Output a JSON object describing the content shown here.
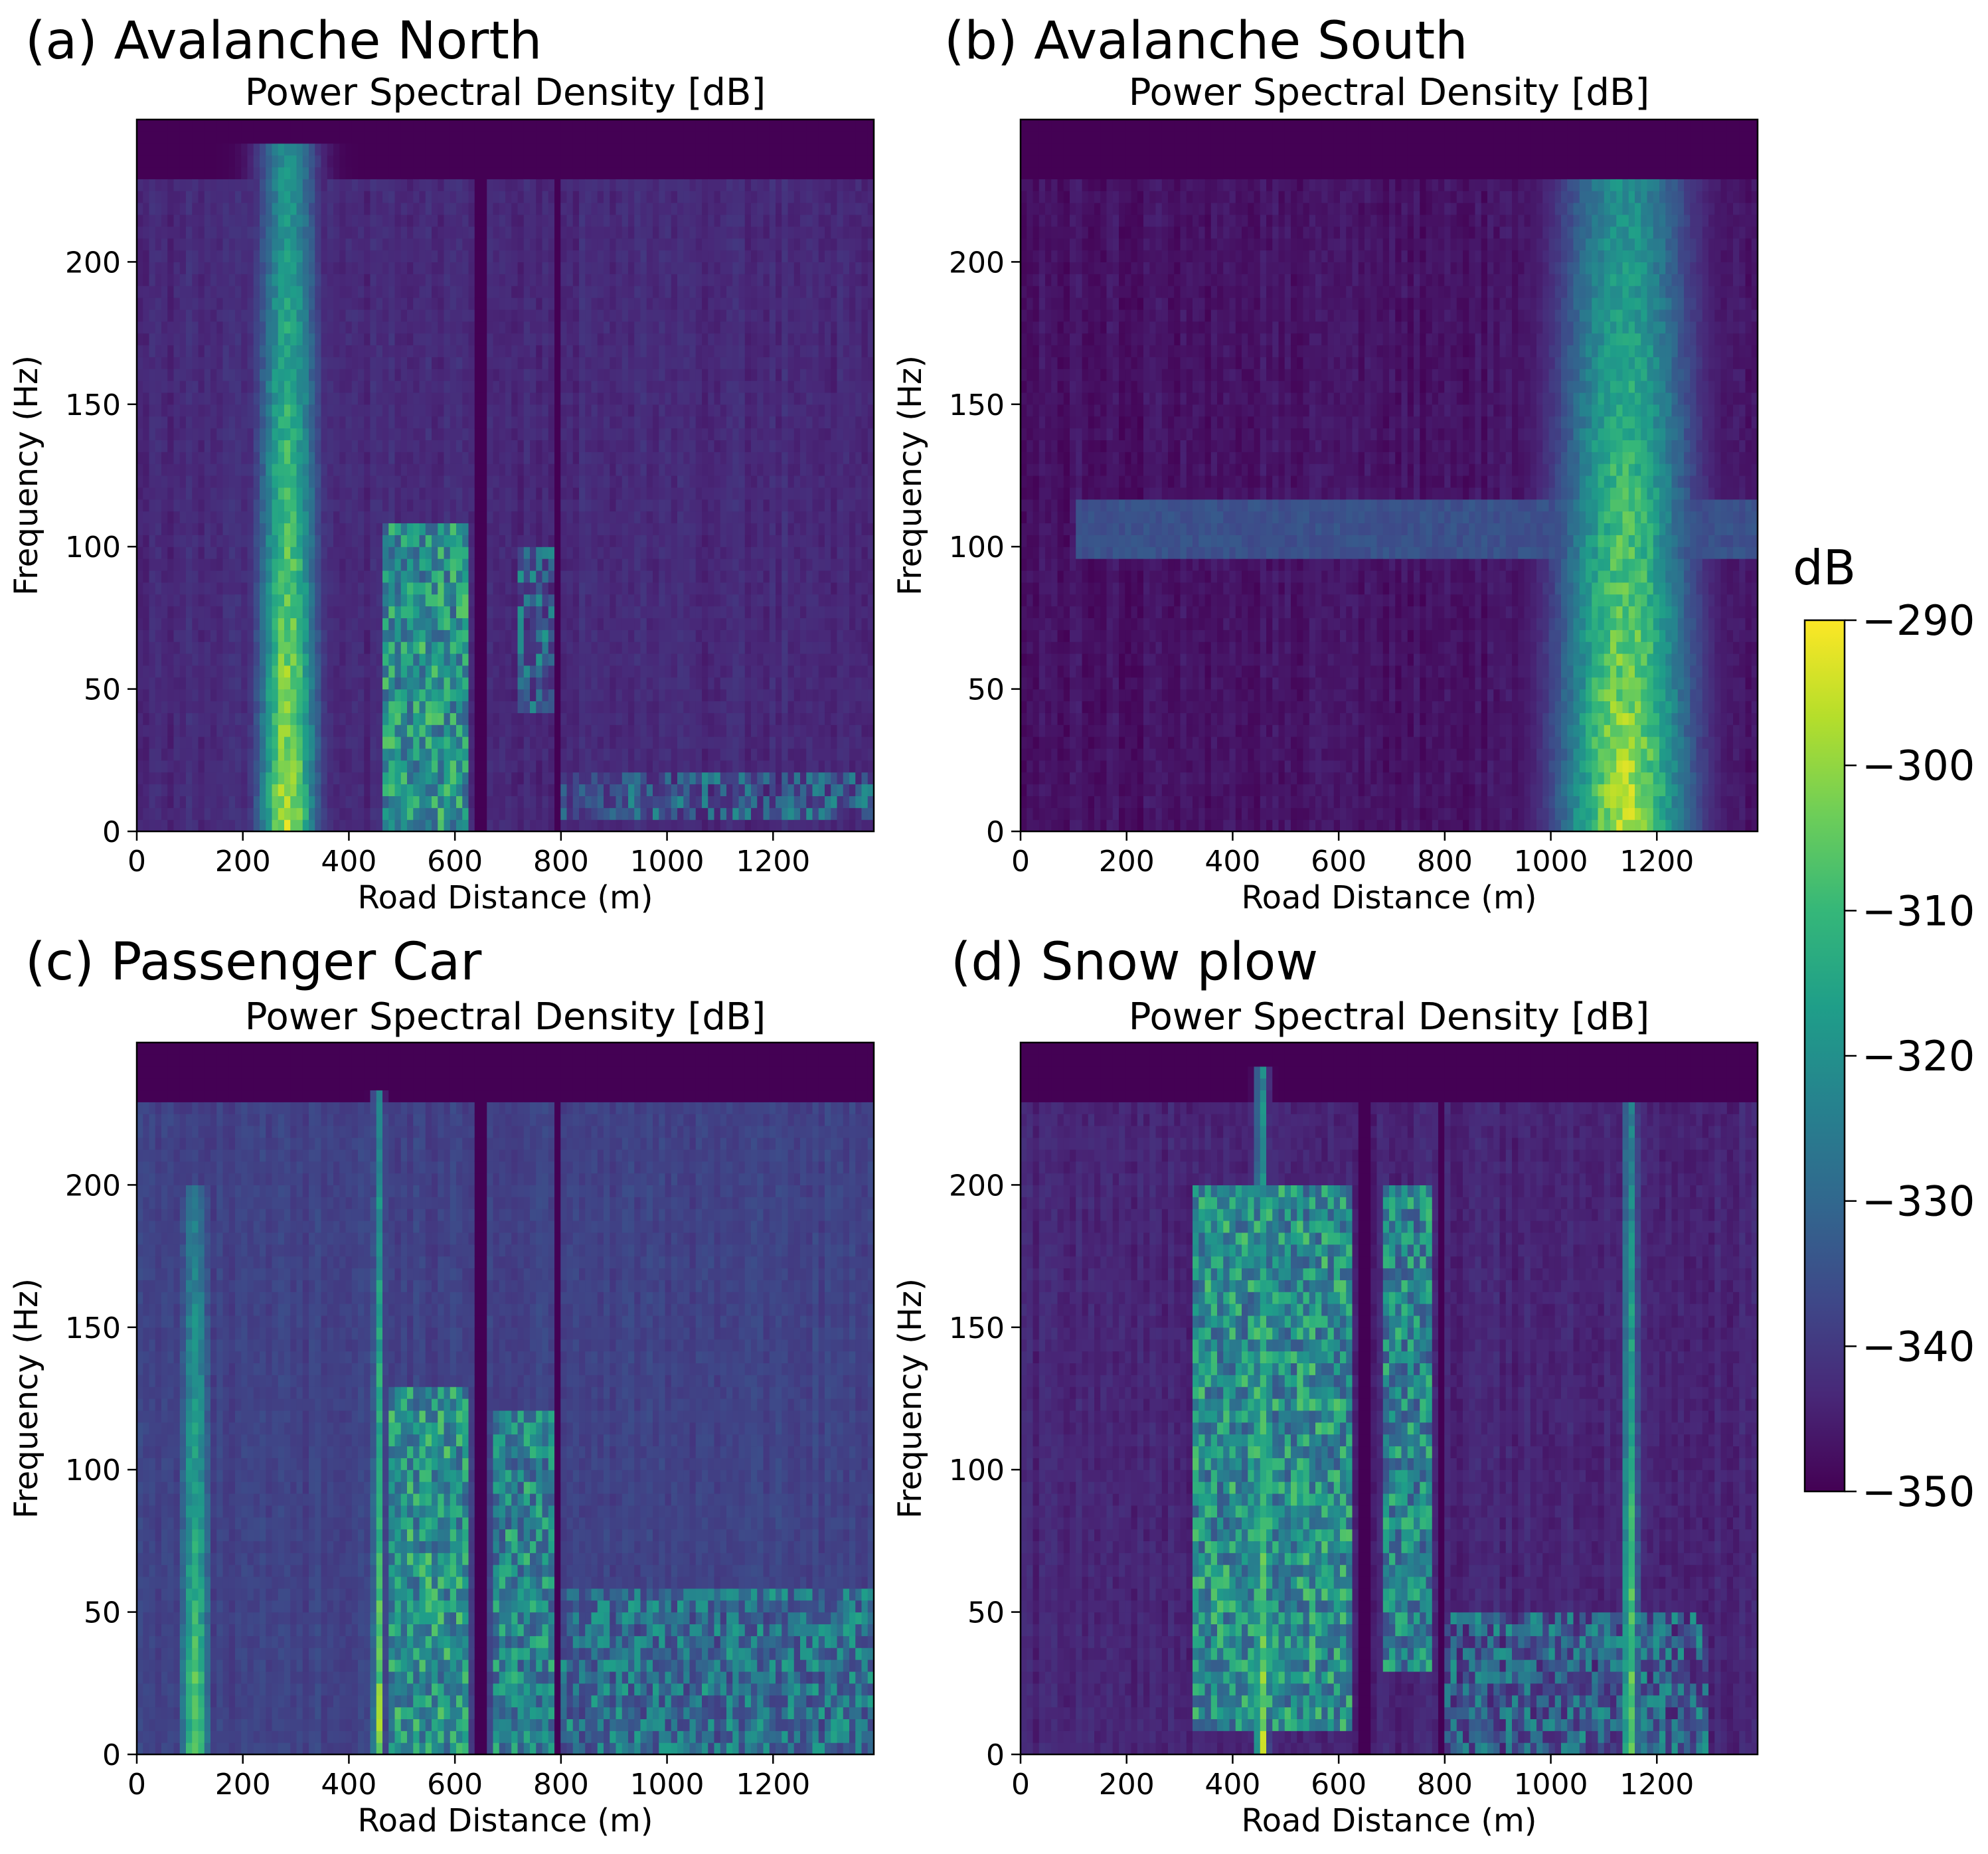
{
  "figure": {
    "colorbar": {
      "title": "dB",
      "ticks": [
        -290,
        -300,
        -310,
        -320,
        -330,
        -340,
        -350
      ],
      "tick_labels": [
        "−290",
        "−300",
        "−310",
        "−320",
        "−330",
        "−340",
        "−350"
      ],
      "range": [
        -350,
        -290
      ],
      "colormap": "viridis",
      "colormap_stops": [
        "#440154",
        "#482878",
        "#3e4989",
        "#31688e",
        "#26828e",
        "#1f9e89",
        "#35b779",
        "#6ece58",
        "#b5de2b",
        "#fde725"
      ]
    }
  },
  "chart_data": [
    {
      "type": "heatmap",
      "panel_label": "(a) Avalanche North",
      "title": "Power Spectral Density [dB]",
      "xlabel": "Road Distance (m)",
      "ylabel": "Frequency (Hz)",
      "xlim": [
        0,
        1390
      ],
      "ylim": [
        0,
        250
      ],
      "xticks": [
        0,
        200,
        400,
        600,
        800,
        1000,
        1200
      ],
      "yticks": [
        0,
        50,
        100,
        150,
        200
      ],
      "xtick_labels": [
        "0",
        "200",
        "400",
        "600",
        "800",
        "1000",
        "1200"
      ],
      "ytick_labels": [
        "0",
        "50",
        "100",
        "150",
        "200"
      ],
      "color_unit": "dB",
      "features": [
        {
          "x": 285,
          "f_max": 240,
          "peak_db": -290,
          "spread_m": 55,
          "kind": "vertical-streak"
        },
        {
          "x_range": [
            460,
            625
          ],
          "f_range": [
            0,
            110
          ],
          "peak_db": -305,
          "kind": "patchy-band"
        },
        {
          "x_range": [
            720,
            790
          ],
          "f_range": [
            40,
            100
          ],
          "peak_db": -318,
          "kind": "patchy-band"
        },
        {
          "x_range": [
            800,
            1390
          ],
          "f_range": [
            5,
            20
          ],
          "peak_db": -320,
          "kind": "low-frequency-band"
        }
      ],
      "gaps_m": [
        [
          635,
          665
        ],
        [
          790,
          805
        ]
      ],
      "background_db": -343
    },
    {
      "type": "heatmap",
      "panel_label": "(b) Avalanche South",
      "title": "Power Spectral Density [dB]",
      "xlabel": "Road Distance (m)",
      "ylabel": "Frequency (Hz)",
      "xlim": [
        0,
        1390
      ],
      "ylim": [
        0,
        250
      ],
      "xticks": [
        0,
        200,
        400,
        600,
        800,
        1000,
        1200
      ],
      "yticks": [
        0,
        50,
        100,
        150,
        200
      ],
      "xtick_labels": [
        "0",
        "200",
        "400",
        "600",
        "800",
        "1000",
        "1200"
      ],
      "ytick_labels": [
        "0",
        "50",
        "100",
        "150",
        "200"
      ],
      "color_unit": "dB",
      "features": [
        {
          "x": 1140,
          "f_max": 230,
          "peak_db": -290,
          "spread_m": 120,
          "kind": "vertical-streak"
        },
        {
          "x_range": [
            100,
            1390
          ],
          "f_range": [
            95,
            115
          ],
          "peak_db": -333,
          "kind": "horizontal-band"
        }
      ],
      "gaps_m": [],
      "background_db": -347
    },
    {
      "type": "heatmap",
      "panel_label": "(c) Passenger Car",
      "title": "Power Spectral Density [dB]",
      "xlabel": "Road Distance (m)",
      "ylabel": "Frequency (Hz)",
      "xlim": [
        0,
        1390
      ],
      "ylim": [
        0,
        250
      ],
      "xticks": [
        0,
        200,
        400,
        600,
        800,
        1000,
        1200
      ],
      "yticks": [
        0,
        50,
        100,
        150,
        200
      ],
      "xtick_labels": [
        "0",
        "200",
        "400",
        "600",
        "800",
        "1000",
        "1200"
      ],
      "ytick_labels": [
        "0",
        "50",
        "100",
        "150",
        "200"
      ],
      "color_unit": "dB",
      "features": [
        {
          "x": 110,
          "f_max": 200,
          "peak_db": -300,
          "spread_m": 30,
          "kind": "vertical-streak"
        },
        {
          "x": 455,
          "f_max": 235,
          "peak_db": -292,
          "spread_m": 10,
          "kind": "vertical-streak"
        },
        {
          "x_range": [
            480,
            630
          ],
          "f_range": [
            0,
            130
          ],
          "peak_db": -305,
          "kind": "patchy-band"
        },
        {
          "x_range": [
            670,
            790
          ],
          "f_range": [
            0,
            120
          ],
          "peak_db": -308,
          "kind": "patchy-band"
        },
        {
          "x_range": [
            800,
            1390
          ],
          "f_range": [
            0,
            60
          ],
          "peak_db": -315,
          "kind": "broadband"
        }
      ],
      "gaps_m": [
        [
          635,
          665
        ],
        [
          790,
          805
        ]
      ],
      "background_db": -338
    },
    {
      "type": "heatmap",
      "panel_label": "(d) Snow plow",
      "title": "Power Spectral Density [dB]",
      "xlabel": "Road Distance (m)",
      "ylabel": "Frequency (Hz)",
      "xlim": [
        0,
        1390
      ],
      "ylim": [
        0,
        250
      ],
      "xticks": [
        0,
        200,
        400,
        600,
        800,
        1000,
        1200
      ],
      "yticks": [
        0,
        50,
        100,
        150,
        200
      ],
      "xtick_labels": [
        "0",
        "200",
        "400",
        "600",
        "800",
        "1000",
        "1200"
      ],
      "ytick_labels": [
        "0",
        "50",
        "100",
        "150",
        "200"
      ],
      "color_unit": "dB",
      "features": [
        {
          "x": 455,
          "f_max": 240,
          "peak_db": -291,
          "spread_m": 12,
          "kind": "vertical-streak"
        },
        {
          "x": 1150,
          "f_max": 230,
          "peak_db": -296,
          "spread_m": 15,
          "kind": "vertical-streak"
        },
        {
          "x_range": [
            320,
            620
          ],
          "f_range": [
            10,
            200
          ],
          "peak_db": -306,
          "kind": "patchy-band"
        },
        {
          "x_range": [
            680,
            780
          ],
          "f_range": [
            30,
            200
          ],
          "peak_db": -308,
          "kind": "patchy-band"
        },
        {
          "x_range": [
            800,
            1300
          ],
          "f_range": [
            0,
            50
          ],
          "peak_db": -318,
          "kind": "broadband"
        }
      ],
      "gaps_m": [
        [
          635,
          665
        ],
        [
          790,
          805
        ]
      ],
      "background_db": -344
    }
  ]
}
